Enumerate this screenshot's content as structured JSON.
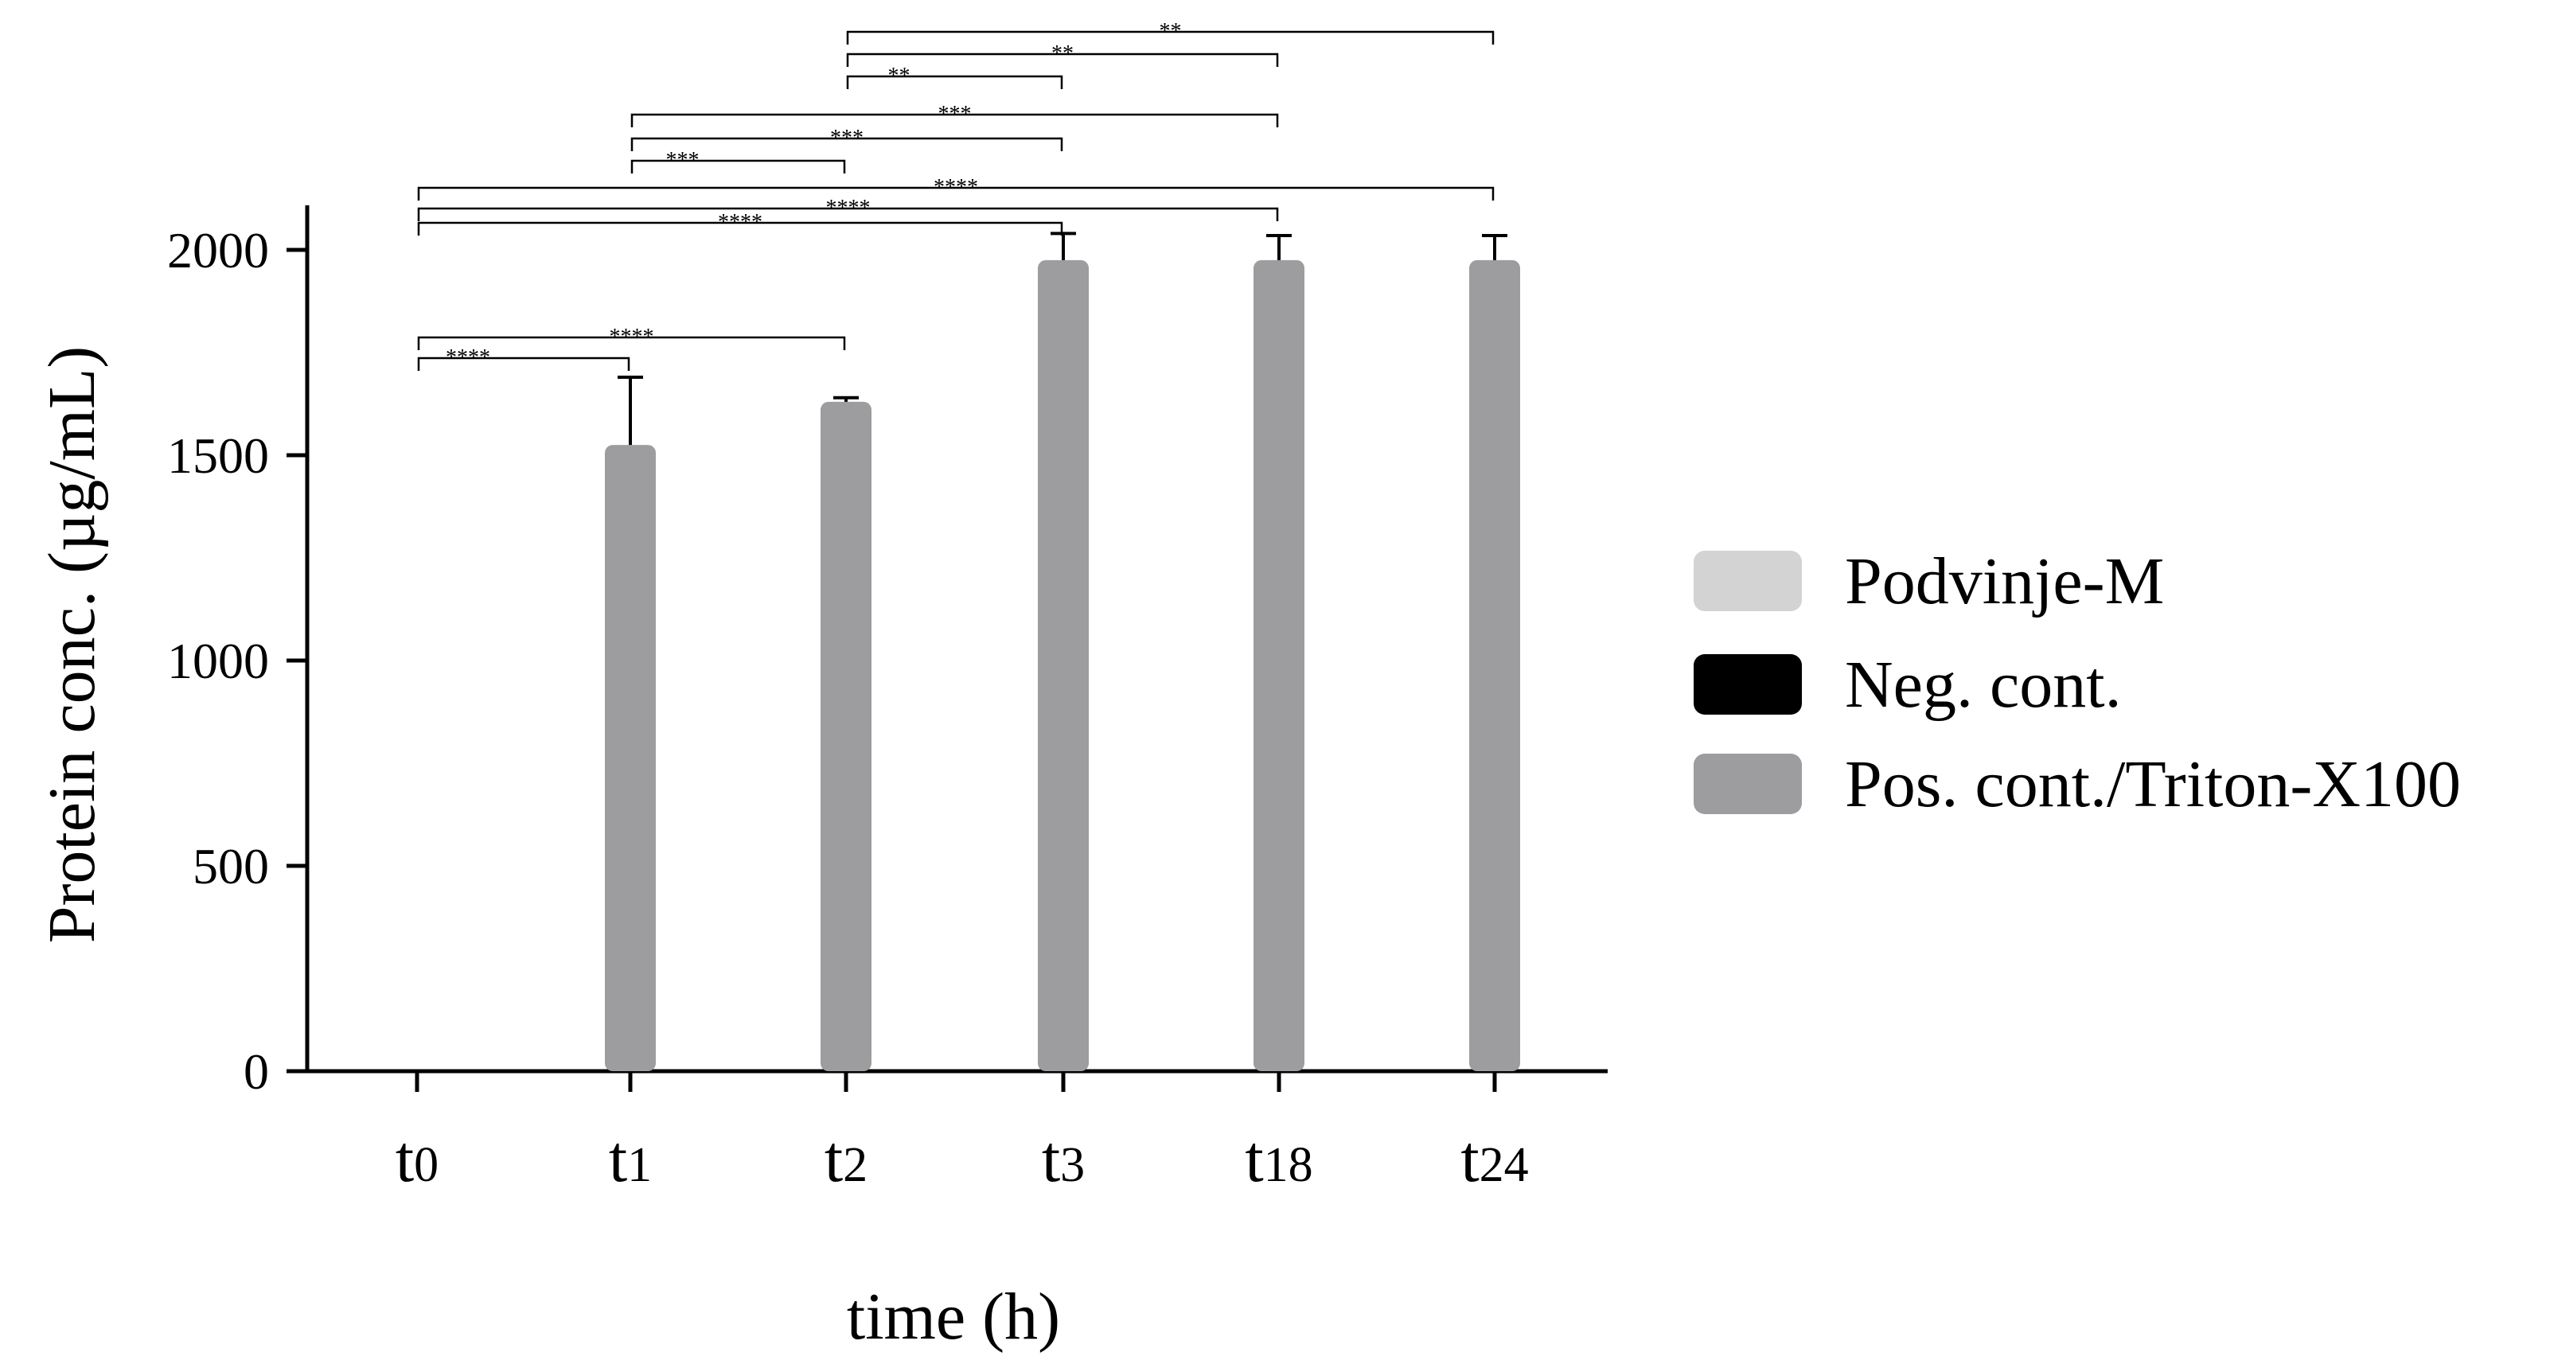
{
  "chart_data": {
    "type": "bar",
    "xlabel": "time (h)",
    "ylabel": "Protein conc. (µg/mL)",
    "ylim": [
      0,
      2000
    ],
    "yticks": [
      0,
      500,
      1000,
      1500,
      2000
    ],
    "categories": [
      {
        "base": "t",
        "sub": "0"
      },
      {
        "base": "t",
        "sub": "1"
      },
      {
        "base": "t",
        "sub": "2"
      },
      {
        "base": "t",
        "sub": "3"
      },
      {
        "base": "t",
        "sub": "18"
      },
      {
        "base": "t",
        "sub": "24"
      }
    ],
    "series": [
      {
        "name": "Podvinje-M",
        "color": "#d3d3d3",
        "values": [
          0,
          0,
          0,
          0,
          0,
          0
        ],
        "errors": [
          0,
          0,
          0,
          0,
          0,
          0
        ]
      },
      {
        "name": "Neg. cont.",
        "color": "#000000",
        "values": [
          0,
          0,
          0,
          0,
          0,
          0
        ],
        "errors": [
          0,
          0,
          0,
          0,
          0,
          0
        ]
      },
      {
        "name": "Pos. cont./Triton-X100",
        "color": "#9d9c9f",
        "values": [
          0,
          1525,
          1630,
          1975,
          1975,
          1975
        ],
        "errors": [
          0,
          165,
          10,
          65,
          60,
          60
        ]
      }
    ],
    "legend_position": "right",
    "significance": [
      {
        "from": 0,
        "to": 1,
        "label": "****"
      },
      {
        "from": 0,
        "to": 2,
        "label": "****"
      },
      {
        "from": 0,
        "to": 3,
        "label": "****"
      },
      {
        "from": 0,
        "to": 4,
        "label": "****"
      },
      {
        "from": 0,
        "to": 5,
        "label": "****"
      },
      {
        "from": 1,
        "to": 2,
        "label": "***"
      },
      {
        "from": 1,
        "to": 3,
        "label": "***"
      },
      {
        "from": 1,
        "to": 4,
        "label": "***"
      },
      {
        "from": 2,
        "to": 3,
        "label": "**"
      },
      {
        "from": 2,
        "to": 4,
        "label": "**"
      },
      {
        "from": 2,
        "to": 5,
        "label": "**"
      }
    ]
  }
}
